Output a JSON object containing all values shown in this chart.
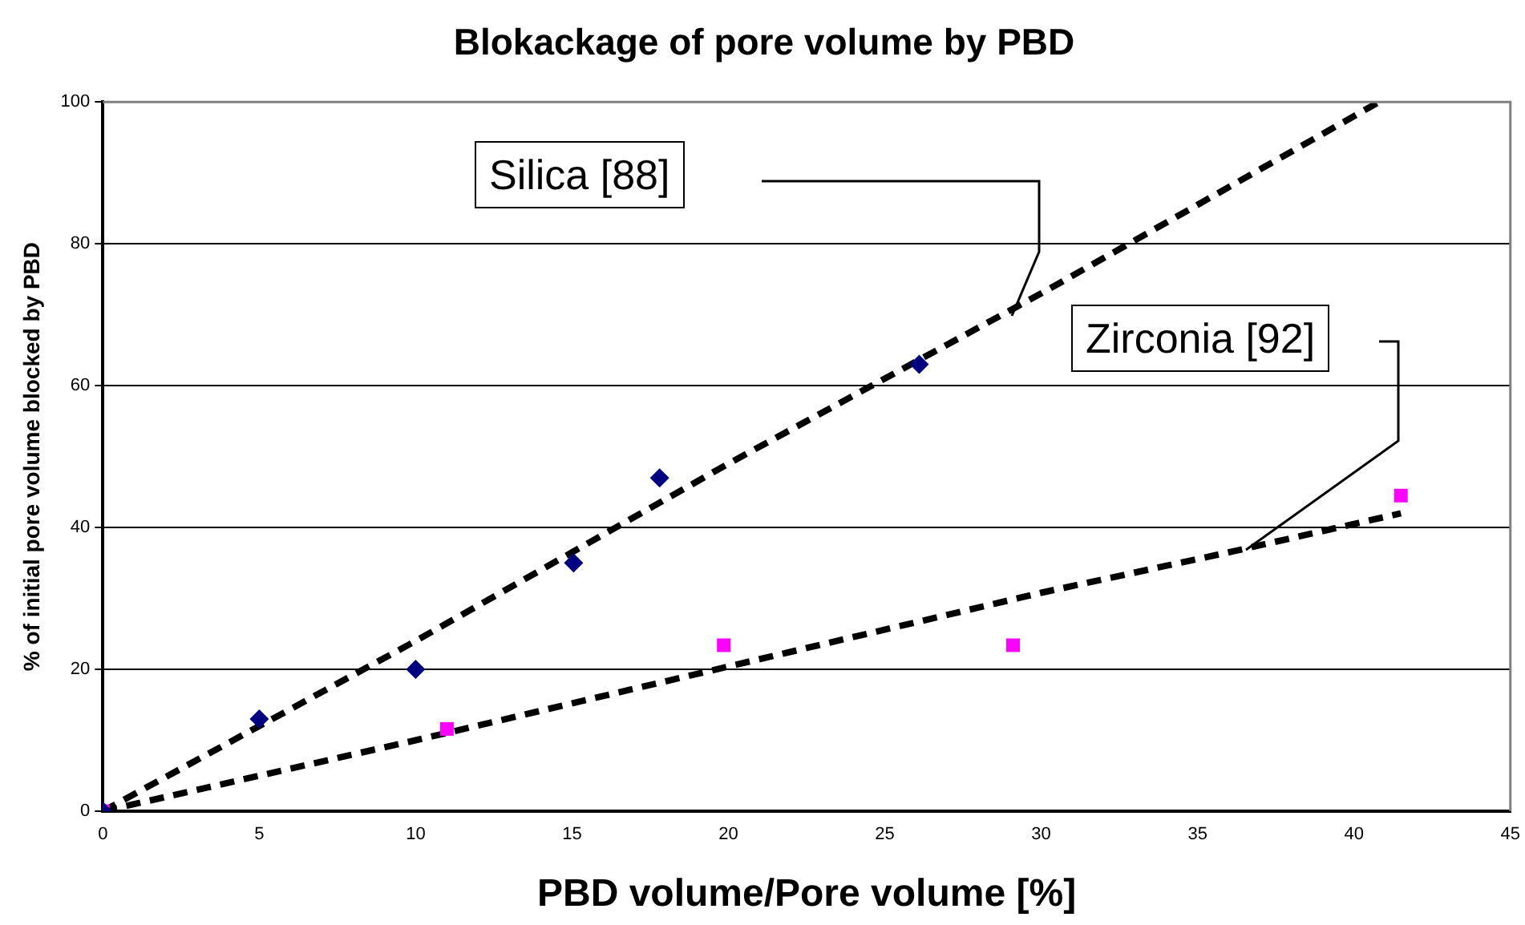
{
  "chart_data": {
    "type": "scatter",
    "title": "Blokackage of pore volume by PBD",
    "xlabel": "PBD volume/Pore volume [%]",
    "ylabel": "% of initial pore volume blocked by PBD",
    "series": [
      {
        "color": "#000080",
        "marker": "diamond",
        "x": [
          0,
          5,
          10,
          15.05,
          17.8,
          26.1
        ],
        "values": [
          0,
          13,
          20,
          35,
          47,
          63
        ]
      },
      {
        "color": "#ff00ff",
        "marker": "square",
        "x": [
          0,
          11,
          19.85,
          29.1,
          41.5
        ],
        "values": [
          0,
          11.6,
          23.4,
          23.4,
          44.5
        ]
      },
      {
        "type": "line",
        "color": "#000000",
        "line_style": "dashed",
        "marker": "none",
        "x": [
          0,
          10,
          20,
          30,
          40.8
        ],
        "values": [
          0,
          24,
          49,
          73,
          100
        ]
      },
      {
        "type": "line",
        "color": "#000000",
        "line_style": "dashed",
        "marker": "none",
        "x": [
          0,
          10,
          20,
          30,
          36.1,
          41.5
        ],
        "values": [
          0,
          10,
          20.4,
          30.8,
          36.6,
          42
        ]
      }
    ],
    "annotations": [
      "Silica [88]",
      "Zirconia [92]"
    ],
    "xlim": [
      0,
      45
    ],
    "xticks": [
      0,
      5,
      10,
      15,
      20,
      25,
      30,
      35,
      40,
      45
    ],
    "ylim": [
      0,
      100
    ],
    "yticks": [
      0,
      20,
      40,
      60,
      80,
      100
    ],
    "grid": "y",
    "legend": false
  }
}
